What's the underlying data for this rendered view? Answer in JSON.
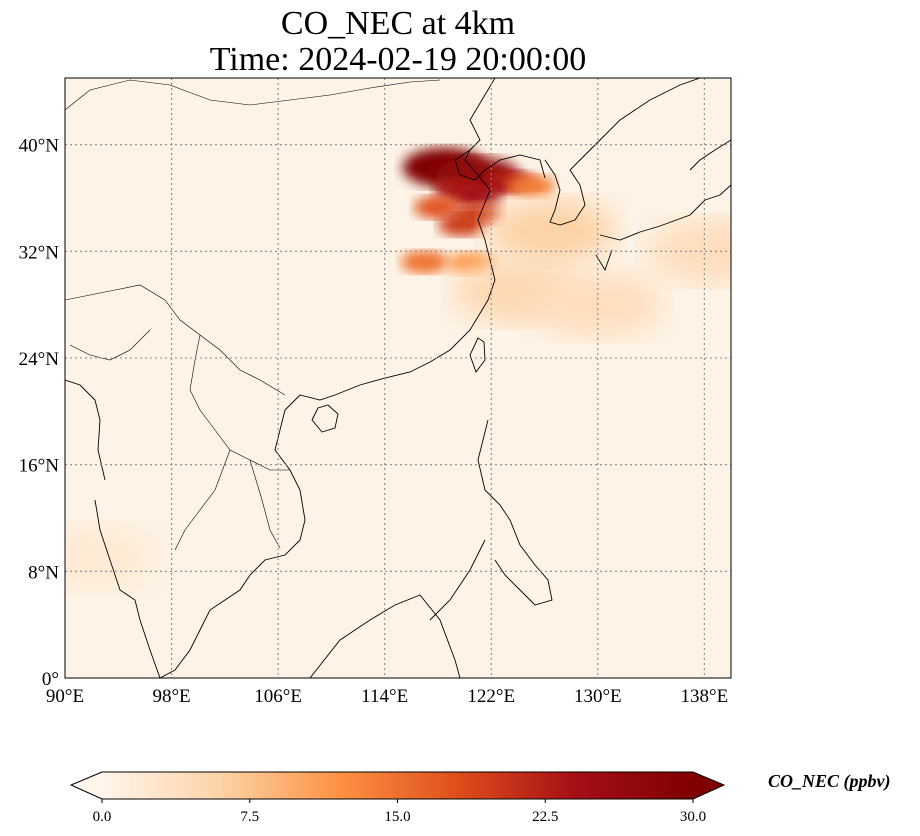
{
  "map": {
    "title_line1": "CO_NEC at 4km",
    "title_line2": "Time: 2024-02-19 20:00:00",
    "extent": {
      "lon_min": 90,
      "lon_max": 140,
      "lat_min": 0,
      "lat_max": 45
    },
    "lon_ticks": [
      {
        "value": 90,
        "label": "90°E"
      },
      {
        "value": 98,
        "label": "98°E"
      },
      {
        "value": 106,
        "label": "106°E"
      },
      {
        "value": 114,
        "label": "114°E"
      },
      {
        "value": 122,
        "label": "122°E"
      },
      {
        "value": 130,
        "label": "130°E"
      },
      {
        "value": 138,
        "label": "138°E"
      }
    ],
    "lat_ticks": [
      {
        "value": 0,
        "label": "0°"
      },
      {
        "value": 8,
        "label": "8°N"
      },
      {
        "value": 16,
        "label": "16°N"
      },
      {
        "value": 24,
        "label": "24°N"
      },
      {
        "value": 32,
        "label": "32°N"
      },
      {
        "value": 40,
        "label": "40°N"
      }
    ],
    "colors": {
      "background": "#fdf3e6",
      "coastline": "#000000",
      "gridline": "#888888"
    },
    "plumes": [
      {
        "lon": 118.5,
        "lat": 38.3,
        "value": 30
      },
      {
        "lon": 121.0,
        "lat": 37.6,
        "value": 27
      },
      {
        "lon": 123.5,
        "lat": 37.2,
        "value": 22
      },
      {
        "lon": 125.0,
        "lat": 36.9,
        "value": 14
      },
      {
        "lon": 119.5,
        "lat": 36.6,
        "value": 23
      },
      {
        "lon": 121.0,
        "lat": 36.2,
        "value": 24
      },
      {
        "lon": 118.0,
        "lat": 35.3,
        "value": 18
      },
      {
        "lon": 119.8,
        "lat": 34.0,
        "value": 20
      },
      {
        "lon": 121.0,
        "lat": 34.8,
        "value": 20
      },
      {
        "lon": 117.0,
        "lat": 31.2,
        "value": 15
      },
      {
        "lon": 120.5,
        "lat": 31.1,
        "value": 12
      },
      {
        "lon": 126.5,
        "lat": 33.5,
        "value": 6
      },
      {
        "lon": 124.0,
        "lat": 29.0,
        "value": 5
      },
      {
        "lon": 130.0,
        "lat": 28.0,
        "value": 4
      },
      {
        "lon": 138.5,
        "lat": 32.0,
        "value": 4
      },
      {
        "lon": 92.0,
        "lat": 9.0,
        "value": 2
      }
    ]
  },
  "colorbar": {
    "label": "CO_NEC (ppbv)",
    "min": 0,
    "max": 30,
    "ticks": [
      {
        "value": 0,
        "label": "0.0"
      },
      {
        "value": 7.5,
        "label": "7.5"
      },
      {
        "value": 15,
        "label": "15.0"
      },
      {
        "value": 22.5,
        "label": "22.5"
      },
      {
        "value": 30,
        "label": "30.0"
      }
    ],
    "stops": [
      "#fff5eb",
      "#fdd3a7",
      "#fd9243",
      "#df4f1b",
      "#a50f15",
      "#7f0000"
    ]
  }
}
